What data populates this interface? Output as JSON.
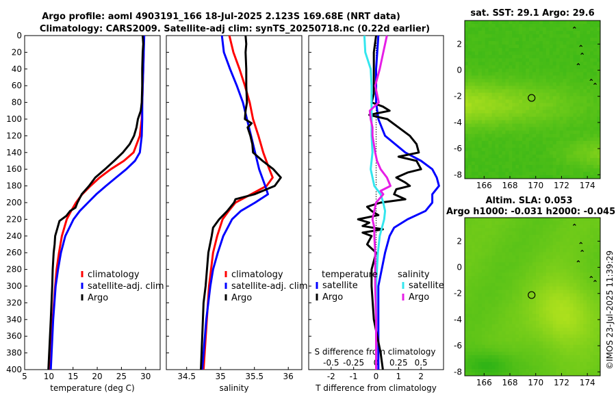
{
  "header": {
    "title_line1": "Argo profile: aoml 4903191_166 18-Jul-2025 2.123S 169.68E (NRT data)",
    "title_line2": "Climatology: CARS2009. Satellite-adj clim: synTS_20250718.nc (0.22d earlier)"
  },
  "footer": {
    "copyright": "©IMOS 23-Jul-2025 11:39:29"
  },
  "colors": {
    "climatology": "#ff0000",
    "satellite": "#0000ff",
    "argo": "#000000",
    "sat_salinity": "#33e6ee",
    "argo_salinity": "#e61ee6"
  },
  "legends": {
    "temperature": [
      "climatology",
      "satellite-adj. clim",
      "Argo"
    ],
    "salinity": [
      "climatology",
      "satellite-adj. clim",
      "Argo"
    ],
    "difference": {
      "temp_header": "temperature",
      "sal_header": "salinity",
      "temp_items": [
        "satellite",
        "Argo"
      ],
      "sal_items": [
        "satellite",
        "Argo"
      ]
    }
  },
  "chart_data": [
    {
      "type": "line",
      "name": "temperature-profile",
      "xlabel": "temperature (deg C)",
      "xlim": [
        5,
        33
      ],
      "ylim": [
        0,
        400
      ],
      "xticks": [
        5,
        10,
        15,
        20,
        25,
        30
      ],
      "yticks": [
        0,
        20,
        40,
        60,
        80,
        100,
        120,
        140,
        160,
        180,
        200,
        220,
        240,
        260,
        280,
        300,
        320,
        340,
        360,
        380,
        400
      ],
      "series": [
        {
          "name": "climatology",
          "color": "#ff0000",
          "depth": [
            0,
            20,
            40,
            60,
            80,
            100,
            120,
            140,
            150,
            160,
            170,
            180,
            190,
            200,
            210,
            220,
            240,
            260,
            280,
            300,
            340,
            400
          ],
          "values": [
            29.6,
            29.6,
            29.5,
            29.4,
            29.3,
            29.2,
            28.8,
            27.5,
            25.5,
            22.8,
            20.5,
            18.6,
            16.9,
            15.6,
            14.6,
            13.7,
            12.7,
            12.1,
            11.6,
            11.3,
            10.8,
            10.3
          ]
        },
        {
          "name": "satellite-adj. clim",
          "color": "#0000ff",
          "depth": [
            0,
            20,
            40,
            60,
            80,
            100,
            120,
            140,
            150,
            160,
            170,
            180,
            190,
            200,
            210,
            220,
            240,
            260,
            280,
            300,
            340,
            400
          ],
          "values": [
            29.7,
            29.6,
            29.5,
            29.4,
            29.3,
            29.3,
            29.2,
            28.8,
            27.8,
            26.0,
            23.9,
            21.8,
            19.8,
            18.1,
            16.4,
            15.1,
            13.4,
            12.5,
            11.9,
            11.4,
            10.9,
            10.4
          ]
        },
        {
          "name": "Argo",
          "color": "#000000",
          "depth": [
            0,
            10,
            20,
            40,
            60,
            80,
            90,
            100,
            110,
            120,
            130,
            140,
            150,
            160,
            170,
            180,
            190,
            200,
            206,
            210,
            216,
            222,
            230,
            240,
            250,
            260,
            280,
            300,
            340,
            400
          ],
          "values": [
            29.4,
            29.5,
            29.4,
            29.3,
            29.3,
            29.2,
            29.0,
            28.4,
            28.1,
            27.6,
            26.7,
            25.3,
            23.5,
            21.6,
            19.6,
            18.3,
            16.8,
            15.9,
            15.5,
            14.4,
            13.6,
            12.2,
            11.8,
            11.3,
            11.2,
            11.0,
            10.8,
            10.7,
            10.4,
            9.9
          ]
        }
      ]
    },
    {
      "type": "line",
      "name": "salinity-profile",
      "xlabel": "salinity",
      "xlim": [
        34.2,
        36.2
      ],
      "ylim": [
        0,
        400
      ],
      "xticks": [
        34.5,
        35,
        35.5,
        36
      ],
      "series": [
        {
          "name": "climatology",
          "color": "#ff0000",
          "depth": [
            0,
            20,
            40,
            60,
            80,
            100,
            120,
            140,
            160,
            170,
            180,
            190,
            200,
            210,
            220,
            240,
            260,
            300,
            400
          ],
          "values": [
            35.13,
            35.19,
            35.28,
            35.36,
            35.43,
            35.48,
            35.56,
            35.63,
            35.72,
            35.77,
            35.68,
            35.45,
            35.22,
            35.12,
            35.03,
            34.95,
            34.89,
            34.83,
            34.75
          ]
        },
        {
          "name": "satellite-adj. clim",
          "color": "#0000ff",
          "depth": [
            0,
            20,
            40,
            60,
            80,
            100,
            120,
            140,
            160,
            180,
            190,
            200,
            210,
            220,
            240,
            260,
            280,
            300,
            340,
            400
          ],
          "values": [
            35.02,
            35.05,
            35.14,
            35.24,
            35.33,
            35.39,
            35.45,
            35.51,
            35.57,
            35.66,
            35.7,
            35.51,
            35.3,
            35.17,
            35.04,
            34.96,
            34.89,
            34.85,
            34.79,
            34.73
          ]
        },
        {
          "name": "Argo",
          "color": "#000000",
          "depth": [
            0,
            10,
            20,
            40,
            60,
            80,
            90,
            100,
            105,
            110,
            120,
            130,
            140,
            150,
            160,
            170,
            180,
            190,
            196,
            200,
            210,
            220,
            230,
            240,
            260,
            280,
            300,
            320,
            360,
            400
          ],
          "values": [
            35.37,
            35.38,
            35.37,
            35.38,
            35.38,
            35.39,
            35.37,
            35.36,
            35.46,
            35.4,
            35.44,
            35.47,
            35.48,
            35.62,
            35.78,
            35.89,
            35.8,
            35.5,
            35.22,
            35.2,
            35.1,
            34.98,
            34.89,
            34.87,
            34.82,
            34.8,
            34.78,
            34.75,
            34.73,
            34.71
          ]
        }
      ]
    },
    {
      "type": "line",
      "name": "difference-profile",
      "xlabel": "T difference from climatology",
      "xlabel_top": "S difference from climatology",
      "xlim": [
        -3,
        3
      ],
      "ylim": [
        0,
        400
      ],
      "xticks": [
        -2,
        -1,
        0,
        1,
        2
      ],
      "xticklabels_top": [
        "-0.5",
        "-0.25",
        "0",
        "0.25",
        "0.5"
      ],
      "series": [
        {
          "name": "temperature satellite",
          "color": "#0000ff",
          "depth": [
            0,
            40,
            80,
            100,
            120,
            140,
            150,
            160,
            170,
            180,
            190,
            200,
            210,
            220,
            230,
            240,
            260,
            300,
            340,
            400
          ],
          "values": [
            0.1,
            0.0,
            0.0,
            0.1,
            0.4,
            1.3,
            2.0,
            2.5,
            2.7,
            2.8,
            2.5,
            2.5,
            2.2,
            1.4,
            0.8,
            0.6,
            0.4,
            0.1,
            0.1,
            0.1
          ]
        },
        {
          "name": "temperature Argo",
          "color": "#000000",
          "depth": [
            0,
            20,
            40,
            60,
            70,
            80,
            85,
            90,
            95,
            100,
            110,
            120,
            130,
            140,
            145,
            150,
            160,
            164,
            170,
            176,
            180,
            184,
            190,
            196,
            200,
            205,
            210,
            215,
            220,
            224,
            228,
            232,
            236,
            240,
            250,
            260,
            280,
            300,
            340,
            380,
            400
          ],
          "values": [
            0.0,
            -0.1,
            -0.1,
            -0.1,
            -0.1,
            -0.2,
            0.3,
            0.6,
            -0.3,
            0.5,
            1.0,
            1.5,
            1.8,
            1.9,
            1.0,
            1.8,
            2.0,
            1.4,
            0.9,
            1.3,
            1.5,
            0.9,
            0.8,
            1.3,
            0.2,
            -0.4,
            -0.2,
            0.1,
            -0.8,
            -0.3,
            -0.6,
            0.3,
            -0.6,
            -0.2,
            -0.4,
            0.0,
            -0.2,
            -0.2,
            -0.1,
            0.2,
            0.3
          ]
        },
        {
          "name": "salinity satellite",
          "color": "#33e6ee",
          "depth": [
            0,
            20,
            40,
            60,
            80,
            100,
            120,
            140,
            160,
            180,
            190,
            200,
            210,
            220,
            240,
            260,
            280,
            300,
            340,
            400
          ],
          "values": [
            -0.13,
            -0.12,
            -0.06,
            -0.05,
            -0.05,
            -0.05,
            -0.05,
            -0.04,
            -0.06,
            -0.02,
            0.05,
            0.08,
            0.1,
            0.09,
            0.04,
            0.02,
            0.01,
            0.0,
            0.0,
            0.0
          ]
        },
        {
          "name": "salinity Argo",
          "color": "#e61ee6",
          "depth": [
            0,
            20,
            40,
            60,
            80,
            90,
            100,
            110,
            120,
            140,
            150,
            160,
            170,
            180,
            186,
            190,
            200,
            210,
            220,
            230,
            240,
            260,
            300,
            340,
            400
          ],
          "values": [
            0.12,
            0.08,
            0.04,
            -0.01,
            0.03,
            -0.07,
            -0.06,
            -0.04,
            -0.04,
            -0.01,
            0.01,
            0.05,
            0.12,
            0.16,
            0.05,
            0.08,
            0.0,
            -0.02,
            -0.04,
            -0.02,
            -0.02,
            -0.01,
            -0.01,
            0.0,
            0.0
          ]
        }
      ]
    },
    {
      "type": "heatmap",
      "name": "sst-map",
      "title": "sat. SST: 29.1 Argo: 29.6",
      "xlim": [
        164.5,
        175.0
      ],
      "ylim": [
        -8.3,
        3.8
      ],
      "xticks": [
        166,
        168,
        170,
        172,
        174
      ],
      "yticks": [
        2,
        0,
        -2,
        -4,
        -6,
        -8
      ],
      "marker": {
        "lon": 169.68,
        "lat": -2.123
      }
    },
    {
      "type": "heatmap",
      "name": "sla-map",
      "title": "Altim. SLA: 0.053",
      "subtitle": "Argo h1000: -0.031 h2000: -0.045",
      "xlim": [
        164.5,
        175.0
      ],
      "ylim": [
        -8.3,
        3.8
      ],
      "xticks": [
        166,
        168,
        170,
        172,
        174
      ],
      "yticks": [
        2,
        0,
        -2,
        -4,
        -6,
        -8
      ],
      "marker": {
        "lon": 169.68,
        "lat": -2.123
      }
    }
  ]
}
